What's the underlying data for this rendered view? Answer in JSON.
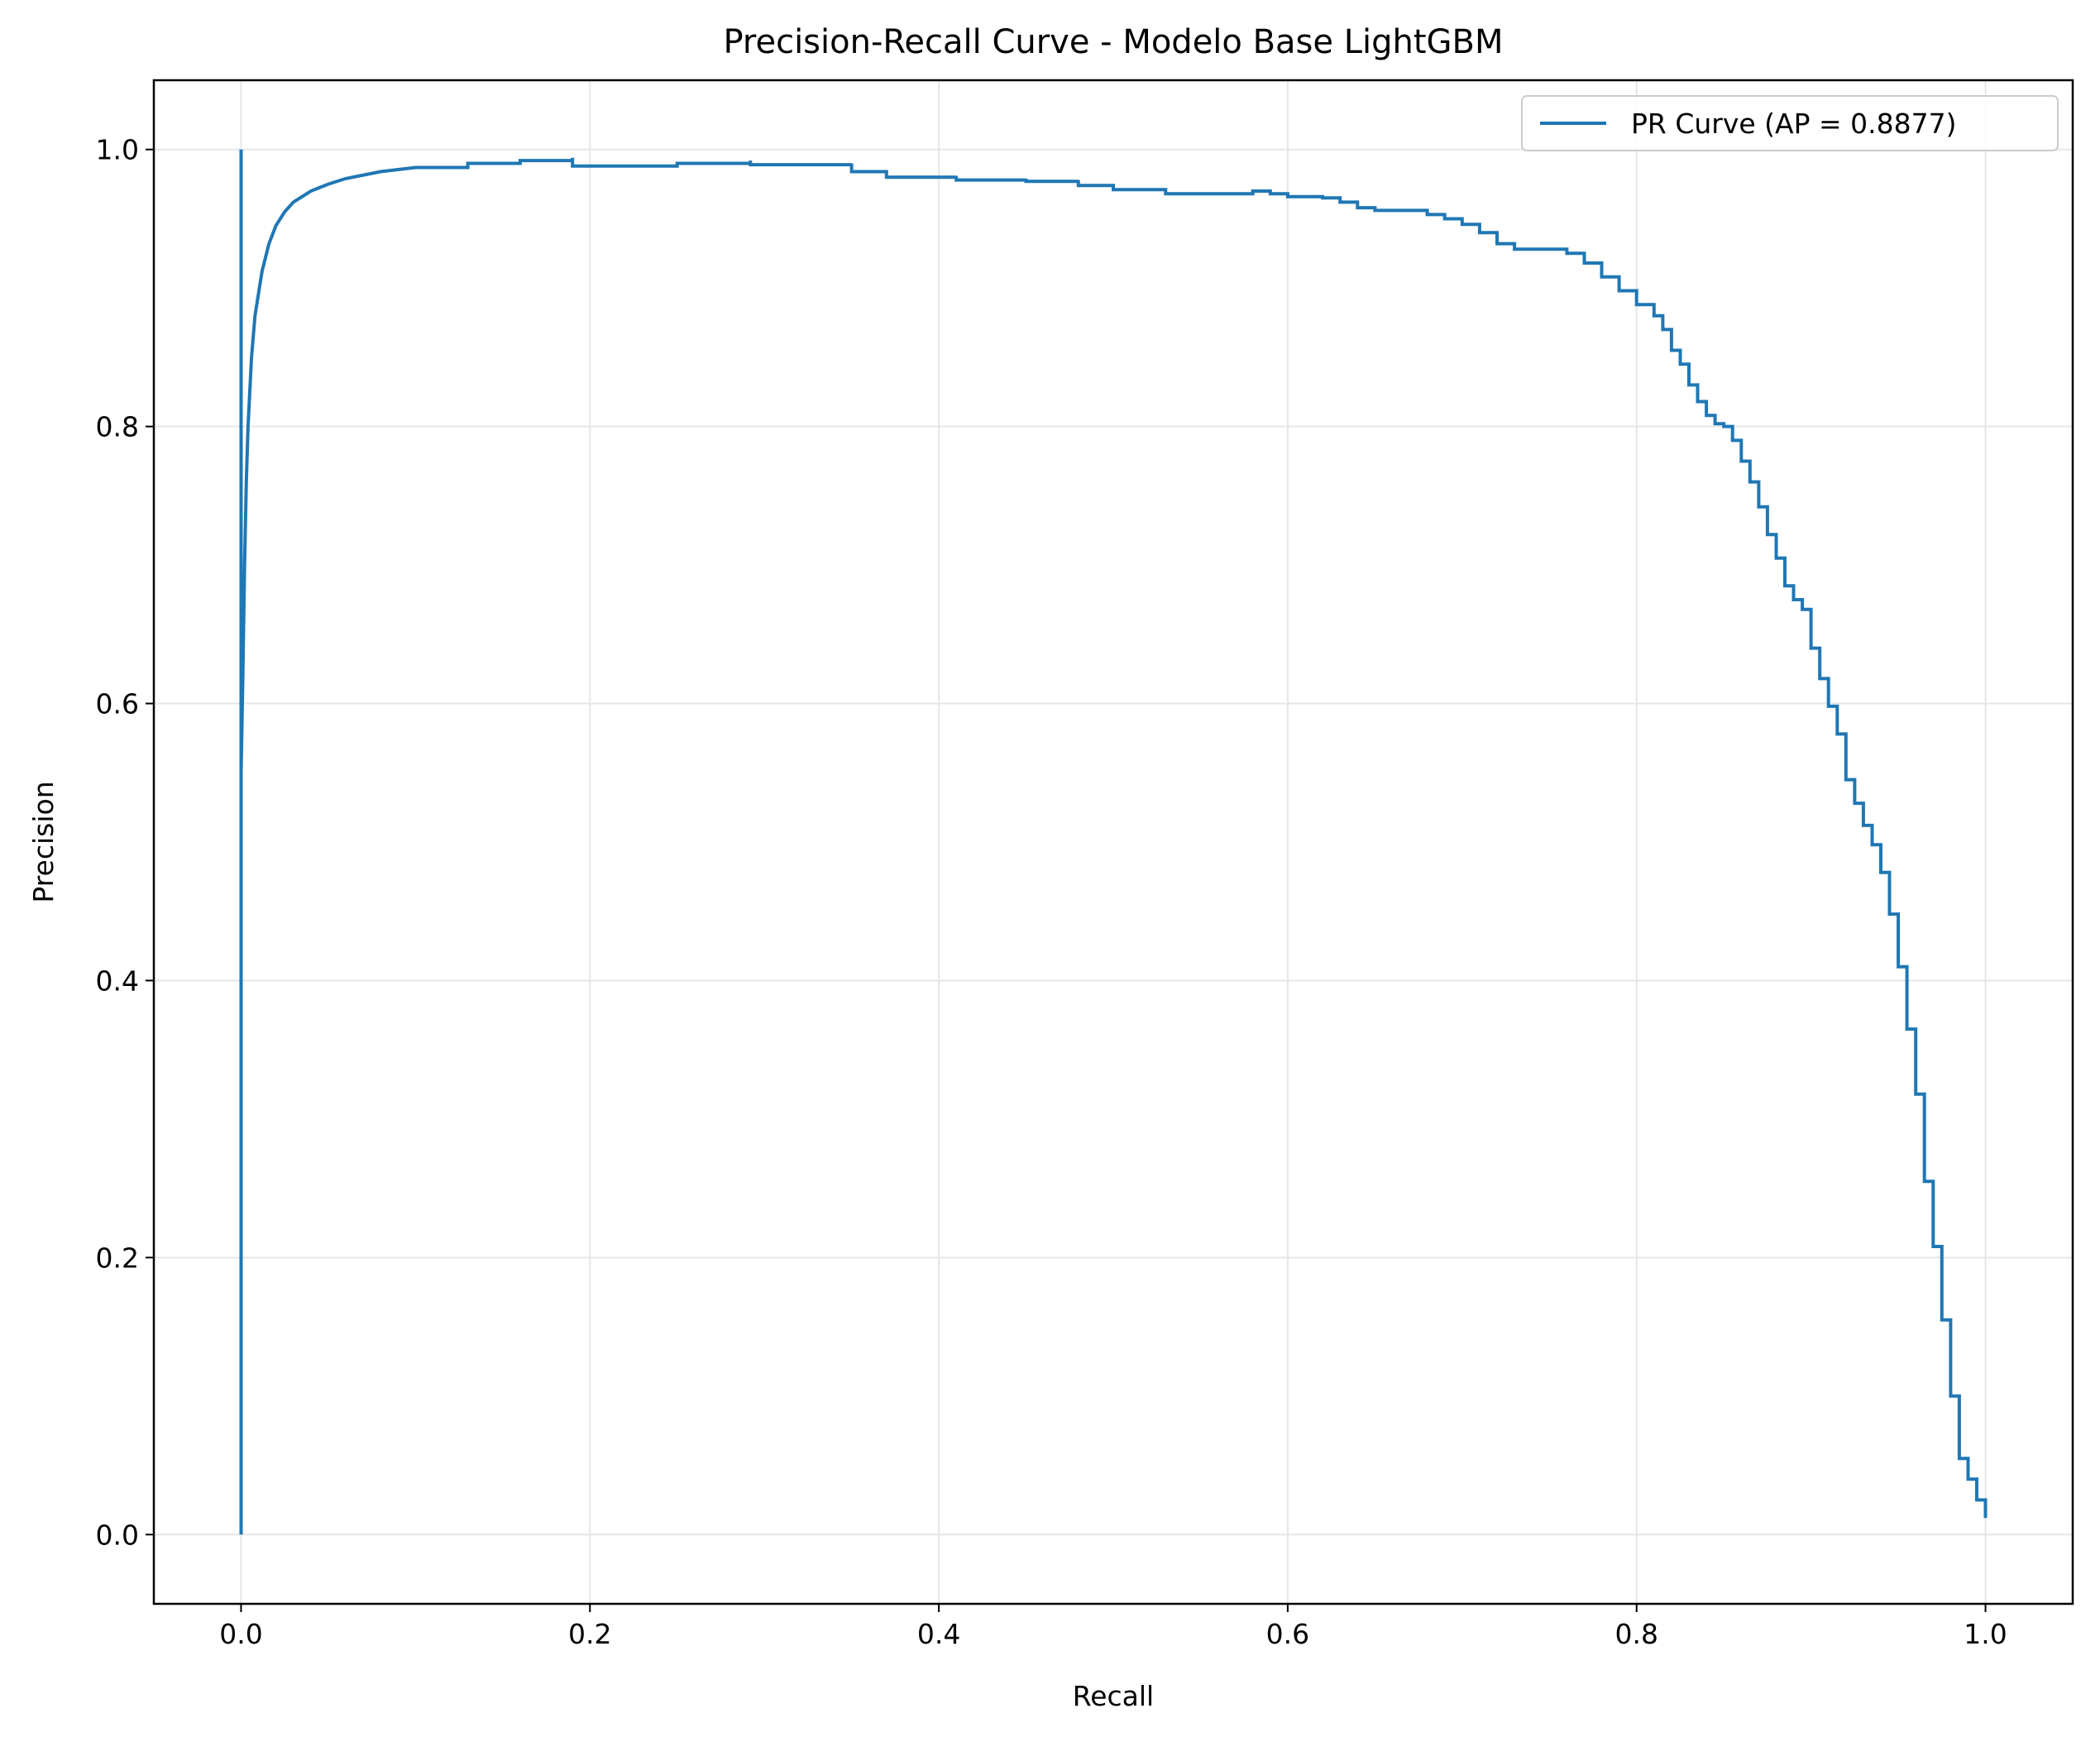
{
  "chart_data": {
    "type": "line",
    "title": "Precision-Recall Curve - Modelo Base LightGBM",
    "xlabel": "Recall",
    "ylabel": "Precision",
    "xlim": [
      -0.05,
      1.05
    ],
    "ylim": [
      -0.05,
      1.05
    ],
    "grid": true,
    "legend_position": "top-right",
    "xticks": [
      "0.0",
      "0.2",
      "0.4",
      "0.6",
      "0.8",
      "1.0"
    ],
    "yticks": [
      "0.0",
      "0.2",
      "0.4",
      "0.6",
      "0.8",
      "1.0"
    ],
    "series": [
      {
        "name": "PR Curve (AP = 0.8877)",
        "color": "#1f77b4",
        "points": [
          [
            0.0,
            1.0
          ],
          [
            0.0,
            0.0
          ],
          [
            0.0,
            0.55
          ],
          [
            0.001,
            0.62
          ],
          [
            0.002,
            0.7
          ],
          [
            0.003,
            0.76
          ],
          [
            0.004,
            0.8
          ],
          [
            0.006,
            0.85
          ],
          [
            0.008,
            0.88
          ],
          [
            0.012,
            0.912
          ],
          [
            0.016,
            0.932
          ],
          [
            0.02,
            0.945
          ],
          [
            0.025,
            0.955
          ],
          [
            0.03,
            0.962
          ],
          [
            0.04,
            0.97
          ],
          [
            0.05,
            0.975
          ],
          [
            0.06,
            0.979
          ],
          [
            0.08,
            0.984
          ],
          [
            0.1,
            0.987
          ],
          [
            0.13,
            0.99
          ],
          [
            0.16,
            0.992
          ],
          [
            0.19,
            0.994
          ],
          [
            0.19,
            0.988
          ],
          [
            0.25,
            0.99
          ],
          [
            0.292,
            0.992
          ],
          [
            0.292,
            0.989
          ],
          [
            0.35,
            0.99
          ],
          [
            0.35,
            0.984
          ],
          [
            0.37,
            0.984
          ],
          [
            0.37,
            0.98
          ],
          [
            0.41,
            0.981
          ],
          [
            0.41,
            0.978
          ],
          [
            0.45,
            0.979
          ],
          [
            0.45,
            0.977
          ],
          [
            0.48,
            0.978
          ],
          [
            0.48,
            0.974
          ],
          [
            0.5,
            0.974
          ],
          [
            0.5,
            0.971
          ],
          [
            0.53,
            0.971
          ],
          [
            0.53,
            0.968
          ],
          [
            0.58,
            0.97
          ],
          [
            0.59,
            0.968
          ],
          [
            0.6,
            0.966
          ],
          [
            0.62,
            0.965
          ],
          [
            0.63,
            0.962
          ],
          [
            0.64,
            0.958
          ],
          [
            0.65,
            0.956
          ],
          [
            0.67,
            0.956
          ],
          [
            0.68,
            0.953
          ],
          [
            0.69,
            0.95
          ],
          [
            0.7,
            0.946
          ],
          [
            0.71,
            0.94
          ],
          [
            0.72,
            0.932
          ],
          [
            0.73,
            0.928
          ],
          [
            0.76,
            0.925
          ],
          [
            0.77,
            0.918
          ],
          [
            0.78,
            0.908
          ],
          [
            0.79,
            0.898
          ],
          [
            0.8,
            0.888
          ],
          [
            0.81,
            0.88
          ],
          [
            0.815,
            0.87
          ],
          [
            0.82,
            0.855
          ],
          [
            0.825,
            0.845
          ],
          [
            0.83,
            0.83
          ],
          [
            0.835,
            0.818
          ],
          [
            0.84,
            0.808
          ],
          [
            0.845,
            0.802
          ],
          [
            0.85,
            0.8
          ],
          [
            0.855,
            0.79
          ],
          [
            0.86,
            0.775
          ],
          [
            0.865,
            0.76
          ],
          [
            0.87,
            0.742
          ],
          [
            0.875,
            0.722
          ],
          [
            0.88,
            0.705
          ],
          [
            0.885,
            0.685
          ],
          [
            0.89,
            0.675
          ],
          [
            0.895,
            0.668
          ],
          [
            0.9,
            0.64
          ],
          [
            0.905,
            0.618
          ],
          [
            0.91,
            0.598
          ],
          [
            0.915,
            0.578
          ],
          [
            0.92,
            0.545
          ],
          [
            0.925,
            0.528
          ],
          [
            0.93,
            0.512
          ],
          [
            0.935,
            0.498
          ],
          [
            0.94,
            0.478
          ],
          [
            0.945,
            0.448
          ],
          [
            0.95,
            0.41
          ],
          [
            0.955,
            0.365
          ],
          [
            0.96,
            0.318
          ],
          [
            0.965,
            0.255
          ],
          [
            0.97,
            0.208
          ],
          [
            0.975,
            0.155
          ],
          [
            0.98,
            0.1
          ],
          [
            0.985,
            0.055
          ],
          [
            0.99,
            0.04
          ],
          [
            0.995,
            0.025
          ],
          [
            1.0,
            0.012
          ]
        ]
      }
    ]
  }
}
